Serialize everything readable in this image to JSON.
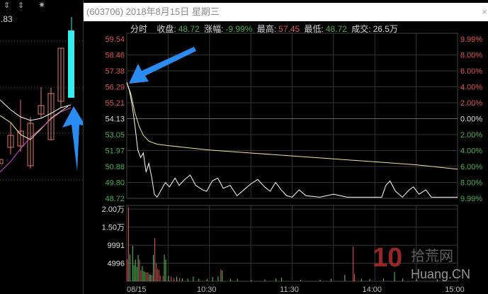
{
  "window": {
    "title": "(603706) 2018年8月15日 星期三",
    "close_icon": "×"
  },
  "info": {
    "mode": "分时",
    "close_label": "收盘:",
    "close": "48.72",
    "change_label": "涨幅:",
    "change": "-9.99%",
    "high_label": "最高:",
    "high": "57.45",
    "low_label": "最低:",
    "low": "48.72",
    "volume_label": "成交:",
    "volume": "26.5万"
  },
  "left_panel": {
    "value": ".83",
    "icons": [
      "arrow-updown-icon",
      "arrow-updown-icon",
      "sun-icon"
    ]
  },
  "chart_data": {
    "type": "line",
    "price_ticks": [
      "59.54",
      "58.46",
      "57.38",
      "56.29",
      "55.21",
      "54.13",
      "53.05",
      "51.97",
      "50.88",
      "49.80",
      "48.72"
    ],
    "pct_ticks": [
      "9.99%",
      "8.00%",
      "6.00%",
      "4.00%",
      "2.00%",
      "0.00%",
      "2.00%",
      "4.00%",
      "6.00%",
      "8.00%",
      "9.99%"
    ],
    "ylim": [
      48.72,
      59.54
    ],
    "prev_close": 54.13,
    "volume_ticks": [
      "2.00万",
      "1.50万",
      "9991",
      "4996"
    ],
    "volume_max": 21000,
    "x_ticks": [
      "08/15",
      "10:30",
      "11:30",
      "14:00",
      "15:00"
    ],
    "price": [
      [
        0,
        56.6
      ],
      [
        2,
        56.0
      ],
      [
        4,
        55.0
      ],
      [
        6,
        53.6
      ],
      [
        8,
        52.0
      ],
      [
        10,
        51.5
      ],
      [
        12,
        51.8
      ],
      [
        14,
        50.5
      ],
      [
        16,
        51.1
      ],
      [
        18,
        50.2
      ],
      [
        20,
        49.0
      ],
      [
        22,
        48.8
      ],
      [
        25,
        49.3
      ],
      [
        28,
        49.8
      ],
      [
        31,
        49.5
      ],
      [
        35,
        50.1
      ],
      [
        38,
        49.6
      ],
      [
        42,
        50.0
      ],
      [
        46,
        50.3
      ],
      [
        50,
        49.6
      ],
      [
        55,
        49.3
      ],
      [
        58,
        49.2
      ],
      [
        62,
        49.9
      ],
      [
        66,
        50.1
      ],
      [
        70,
        49.4
      ],
      [
        75,
        49.6
      ],
      [
        80,
        48.9
      ],
      [
        85,
        49.3
      ],
      [
        90,
        49.7
      ],
      [
        95,
        50.0
      ],
      [
        100,
        49.5
      ],
      [
        104,
        49.2
      ],
      [
        108,
        49.8
      ],
      [
        112,
        49.3
      ],
      [
        116,
        48.9
      ],
      [
        120,
        48.8
      ],
      [
        125,
        49.3
      ],
      [
        130,
        48.9
      ],
      [
        140,
        48.8
      ],
      [
        150,
        49.0
      ],
      [
        160,
        48.8
      ],
      [
        185,
        48.8
      ],
      [
        188,
        49.6
      ],
      [
        191,
        49.9
      ],
      [
        195,
        49.2
      ],
      [
        200,
        48.8
      ],
      [
        205,
        49.3
      ],
      [
        208,
        49.5
      ],
      [
        212,
        49.0
      ],
      [
        217,
        49.3
      ],
      [
        221,
        48.8
      ],
      [
        240,
        48.8
      ]
    ],
    "average": [
      [
        0,
        56.6
      ],
      [
        3,
        55.8
      ],
      [
        6,
        54.5
      ],
      [
        9,
        53.6
      ],
      [
        12,
        53.0
      ],
      [
        16,
        52.6
      ],
      [
        22,
        52.4
      ],
      [
        30,
        52.3
      ],
      [
        60,
        52.0
      ],
      [
        90,
        51.8
      ],
      [
        120,
        51.6
      ],
      [
        150,
        51.4
      ],
      [
        180,
        51.2
      ],
      [
        210,
        51.0
      ],
      [
        240,
        50.7
      ]
    ],
    "volume": [
      [
        0,
        6000,
        "r"
      ],
      [
        1,
        20500,
        "r"
      ],
      [
        2,
        7500,
        "g"
      ],
      [
        4,
        9900,
        "g"
      ],
      [
        5,
        4500,
        "g"
      ],
      [
        6,
        6000,
        "g"
      ],
      [
        7,
        4000,
        "g"
      ],
      [
        8,
        7300,
        "g"
      ],
      [
        9,
        6000,
        "r"
      ],
      [
        10,
        3000,
        "r"
      ],
      [
        11,
        4200,
        "g"
      ],
      [
        12,
        2800,
        "g"
      ],
      [
        13,
        2600,
        "g"
      ],
      [
        14,
        2400,
        "r"
      ],
      [
        15,
        2500,
        "r"
      ],
      [
        16,
        2000,
        "g"
      ],
      [
        17,
        1800,
        "g"
      ],
      [
        18,
        1700,
        "r"
      ],
      [
        19,
        7300,
        "g"
      ],
      [
        20,
        12000,
        "r"
      ],
      [
        21,
        5000,
        "r"
      ],
      [
        22,
        3500,
        "r"
      ],
      [
        23,
        3200,
        "r"
      ],
      [
        24,
        1500,
        "r"
      ],
      [
        26,
        1500,
        "r"
      ],
      [
        27,
        7400,
        "g"
      ],
      [
        28,
        6000,
        "g"
      ],
      [
        30,
        1500,
        "g"
      ],
      [
        32,
        1300,
        "r"
      ],
      [
        34,
        1000,
        "r"
      ],
      [
        36,
        1200,
        "g"
      ],
      [
        38,
        900,
        "r"
      ],
      [
        40,
        800,
        "g"
      ],
      [
        44,
        700,
        "g"
      ],
      [
        48,
        1300,
        "g"
      ],
      [
        52,
        700,
        "g"
      ],
      [
        58,
        600,
        "g"
      ],
      [
        62,
        1200,
        "g"
      ],
      [
        66,
        1300,
        "g"
      ],
      [
        68,
        3300,
        "r"
      ],
      [
        69,
        3000,
        "g"
      ],
      [
        75,
        600,
        "g"
      ],
      [
        80,
        700,
        "g"
      ],
      [
        90,
        400,
        "g"
      ],
      [
        100,
        500,
        "g"
      ],
      [
        108,
        800,
        "g"
      ],
      [
        112,
        1000,
        "g"
      ],
      [
        126,
        400,
        "g"
      ],
      [
        140,
        400,
        "g"
      ],
      [
        148,
        700,
        "g"
      ],
      [
        158,
        1800,
        "g"
      ],
      [
        164,
        9600,
        "r"
      ],
      [
        165,
        2000,
        "r"
      ],
      [
        170,
        600,
        "g"
      ],
      [
        176,
        600,
        "g"
      ],
      [
        186,
        800,
        "g"
      ],
      [
        194,
        2600,
        "g"
      ],
      [
        200,
        800,
        "g"
      ],
      [
        210,
        700,
        "g"
      ],
      [
        225,
        500,
        "g"
      ]
    ]
  },
  "watermark": {
    "number": "10",
    "cn": "拾荒网",
    "en": "Huang.CN"
  }
}
